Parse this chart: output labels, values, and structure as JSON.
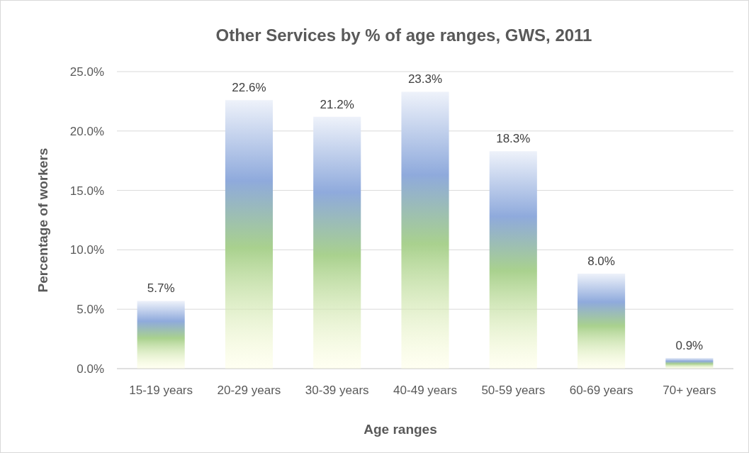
{
  "chart_data": {
    "type": "bar",
    "title": "Other Services by % of age ranges, GWS, 2011",
    "xlabel": "Age ranges",
    "ylabel": "Percentage of workers",
    "categories": [
      "15-19 years",
      "20-29 years",
      "30-39 years",
      "40-49 years",
      "50-59 years",
      "60-69 years",
      "70+ years"
    ],
    "values": [
      5.7,
      22.6,
      21.2,
      23.3,
      18.3,
      8.0,
      0.9
    ],
    "value_labels": [
      "5.7%",
      "22.6%",
      "21.2%",
      "23.3%",
      "18.3%",
      "8.0%",
      "0.9%"
    ],
    "color": "#a9d18e",
    "ylim": [
      0,
      25
    ],
    "yticks": [
      {
        "value": 0,
        "label": "0.0%"
      },
      {
        "value": 5,
        "label": "5.0%"
      },
      {
        "value": 10,
        "label": "10.0%"
      },
      {
        "value": 15,
        "label": "15.0%"
      },
      {
        "value": 20,
        "label": "20.0%"
      },
      {
        "value": 25,
        "label": "25.0%"
      }
    ],
    "grid": "y"
  }
}
